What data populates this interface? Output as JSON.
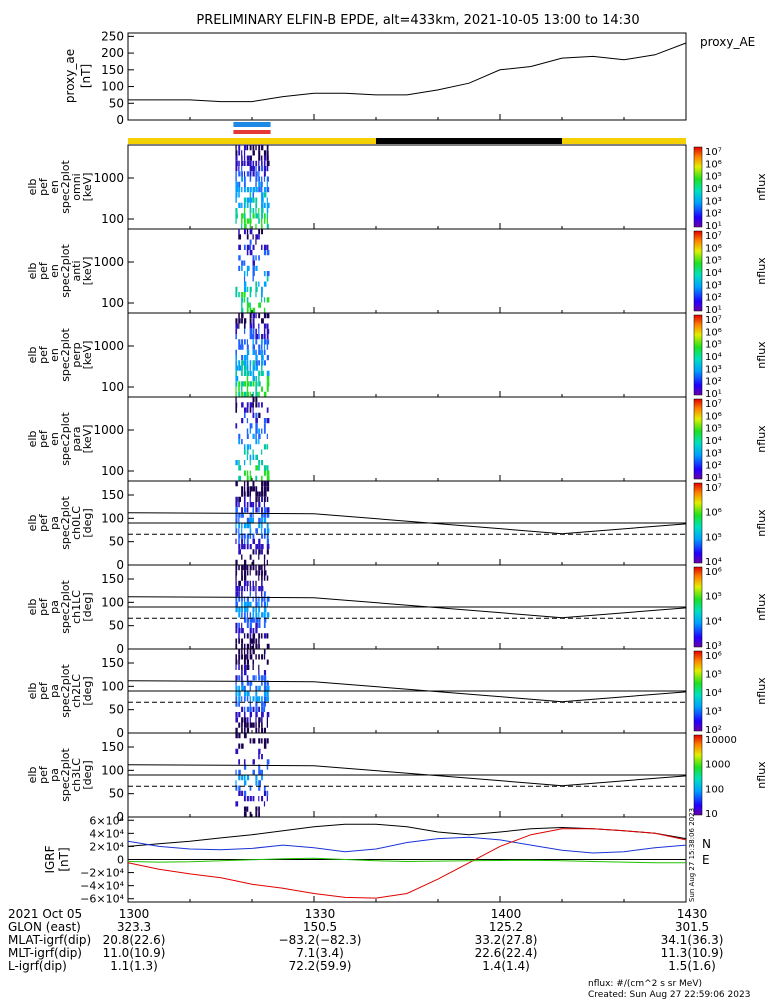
{
  "title": "PRELIMINARY ELFIN-B EPDE, alt=433km, 2021-10-05 13:00 to 14:30",
  "colors": {
    "sector_yellow": "#f5d000",
    "sector_black": "#000000",
    "bar_blue": "#1e88e5",
    "bar_red": "#e53935",
    "geo_x": "#e00000",
    "geo_y": "#1a33d6",
    "geo_z": "#000000",
    "geo_e": "#22c000"
  },
  "sector_bar": {
    "segments": [
      {
        "start": "13:00",
        "end": "13:40",
        "color": "yellow"
      },
      {
        "start": "13:40",
        "end": "14:10",
        "color": "black"
      },
      {
        "start": "14:10",
        "end": "14:30",
        "color": "yellow"
      }
    ],
    "marker_start": "13:17",
    "marker_end": "13:23"
  },
  "chart_data": [
    {
      "type": "line",
      "panel": "proxy_ae",
      "ylabel": [
        "proxy_ae",
        "[nT]"
      ],
      "legend": "proxy_AE",
      "yticks": [
        "250",
        "200",
        "150",
        "100",
        "50",
        "0"
      ],
      "ylim": [
        0,
        260
      ],
      "x": [
        "13:00",
        "13:05",
        "13:10",
        "13:15",
        "13:20",
        "13:25",
        "13:30",
        "13:35",
        "13:40",
        "13:45",
        "13:50",
        "13:55",
        "14:00",
        "14:05",
        "14:10",
        "14:15",
        "14:20",
        "14:25",
        "14:30"
      ],
      "values": [
        60,
        60,
        60,
        55,
        55,
        70,
        80,
        80,
        75,
        75,
        90,
        110,
        150,
        160,
        185,
        190,
        180,
        195,
        230
      ]
    },
    {
      "type": "heatmap",
      "panel": "omni",
      "ylabel": [
        "elb",
        "pef",
        "en",
        "spec2plot",
        "omni",
        "[keV]"
      ],
      "yticks": [
        "1000",
        "100"
      ],
      "colorbar": {
        "label": "nflux",
        "ticks": [
          "10⁷",
          "10⁶",
          "10⁵",
          "10⁴",
          "10³",
          "10²",
          "10¹"
        ]
      }
    },
    {
      "type": "heatmap",
      "panel": "anti",
      "ylabel": [
        "elb",
        "pef",
        "en",
        "spec2plot",
        "anti",
        "[keV]"
      ],
      "yticks": [
        "1000",
        "100"
      ],
      "colorbar": {
        "label": "nflux",
        "ticks": [
          "10⁷",
          "10⁶",
          "10⁵",
          "10⁴",
          "10³",
          "10²",
          "10¹"
        ]
      }
    },
    {
      "type": "heatmap",
      "panel": "perp",
      "ylabel": [
        "elb",
        "pef",
        "en",
        "spec2plot",
        "perp",
        "[keV]"
      ],
      "yticks": [
        "1000",
        "100"
      ],
      "colorbar": {
        "label": "nflux",
        "ticks": [
          "10⁷",
          "10⁶",
          "10⁵",
          "10⁴",
          "10³",
          "10²",
          "10¹"
        ]
      }
    },
    {
      "type": "heatmap",
      "panel": "para",
      "ylabel": [
        "elb",
        "pef",
        "en",
        "spec2plot",
        "para",
        "[keV]"
      ],
      "yticks": [
        "1000",
        "100"
      ],
      "colorbar": {
        "label": "nflux",
        "ticks": [
          "10⁷",
          "10⁶",
          "10⁵",
          "10⁴",
          "10³",
          "10²",
          "10¹"
        ]
      }
    },
    {
      "type": "heatmap",
      "panel": "ch0LC",
      "ylabel": [
        "elb",
        "pef",
        "pa",
        "spec2plot",
        "ch0LC",
        "[deg]"
      ],
      "yticks": [
        "150",
        "100",
        "50",
        "0"
      ],
      "colorbar": {
        "label": "nflux",
        "ticks": [
          "10⁷",
          "10⁶",
          "10⁵",
          "10⁴"
        ]
      }
    },
    {
      "type": "heatmap",
      "panel": "ch1LC",
      "ylabel": [
        "elb",
        "pef",
        "pa",
        "spec2plot",
        "ch1LC",
        "[deg]"
      ],
      "yticks": [
        "150",
        "100",
        "50",
        "0"
      ],
      "colorbar": {
        "label": "nflux",
        "ticks": [
          "10⁶",
          "10⁵",
          "10⁴",
          "10³"
        ]
      }
    },
    {
      "type": "heatmap",
      "panel": "ch2LC",
      "ylabel": [
        "elb",
        "pef",
        "pa",
        "spec2plot",
        "ch2LC",
        "[deg]"
      ],
      "yticks": [
        "150",
        "100",
        "50",
        "0"
      ],
      "colorbar": {
        "label": "nflux",
        "ticks": [
          "10⁶",
          "10⁵",
          "10⁴",
          "10³",
          "10²"
        ]
      }
    },
    {
      "type": "heatmap",
      "panel": "ch3LC",
      "ylabel": [
        "elb",
        "pef",
        "pa",
        "spec2plot",
        "ch3LC",
        "[deg]"
      ],
      "yticks": [
        "150",
        "100",
        "50",
        "0"
      ],
      "colorbar": {
        "label": "nflux",
        "ticks": [
          "10000",
          "1000",
          "100",
          "10"
        ]
      }
    },
    {
      "type": "line",
      "panel": "igrf",
      "ylabel": [
        "IGRF",
        "[nT]"
      ],
      "yticks": [
        "6×10⁴",
        "4×10⁴",
        "2×10⁴",
        "0",
        "−2×10⁴",
        "−4×10⁴",
        "−6×10⁴"
      ],
      "ylim": [
        -65000,
        65000
      ],
      "legend": [
        "N",
        "E"
      ],
      "x": [
        "13:00",
        "13:05",
        "13:10",
        "13:15",
        "13:20",
        "13:25",
        "13:30",
        "13:35",
        "13:40",
        "13:45",
        "13:50",
        "13:55",
        "14:00",
        "14:05",
        "14:10",
        "14:15",
        "14:20",
        "14:25",
        "14:30"
      ],
      "series": [
        {
          "values": [
            20000,
            24000,
            28000,
            33000,
            38000,
            44000,
            50000,
            54000,
            54000,
            50000,
            42000,
            38000,
            42000,
            47000,
            49000,
            47000,
            44000,
            40000,
            32000
          ]
        },
        {
          "values": [
            28000,
            20000,
            16000,
            15000,
            17000,
            22000,
            18000,
            12000,
            16000,
            26000,
            32000,
            34000,
            30000,
            22000,
            14000,
            10000,
            12000,
            18000,
            22000
          ]
        },
        {
          "values": [
            -5000,
            -15000,
            -22000,
            -28000,
            -38000,
            -44000,
            -52000,
            -58000,
            -59000,
            -52000,
            -30000,
            -5000,
            20000,
            38000,
            47000,
            47000,
            44000,
            40000,
            30000
          ]
        },
        {
          "values": [
            -3000,
            -4000,
            -3500,
            -2000,
            -500,
            1000,
            2000,
            0,
            -2000,
            -3000,
            -2500,
            -2000,
            -1500,
            -1000,
            -2000,
            -3000,
            -4000,
            -5000,
            -5000
          ]
        }
      ]
    }
  ],
  "timestamp_side": "Sun Aug 27 15:38:06 2023",
  "xaxis": {
    "ticks": [
      "1300",
      "1330",
      "1400",
      "1430"
    ],
    "row_labels": [
      "2021 Oct 05",
      "GLON (east)",
      "MLAT-igrf(dip)",
      "MLT-igrf(dip)",
      "L-igrf(dip)"
    ],
    "columns": [
      [
        "1300",
        "323.3",
        "20.8(22.6)",
        "11.0(10.9)",
        "1.1(1.3)"
      ],
      [
        "1330",
        "150.5",
        "−83.2(−82.3)",
        "7.1(3.4)",
        "72.2(59.9)"
      ],
      [
        "1400",
        "125.2",
        "33.2(27.8)",
        "22.6(22.4)",
        "1.4(1.4)"
      ],
      [
        "1430",
        "301.5",
        "34.1(36.3)",
        "11.3(10.9)",
        "1.5(1.6)"
      ]
    ]
  },
  "footer": {
    "units": "nflux: #/(cm^2 s sr MeV)",
    "created": "Created: Sun Aug 27 22:59:06 2023"
  }
}
